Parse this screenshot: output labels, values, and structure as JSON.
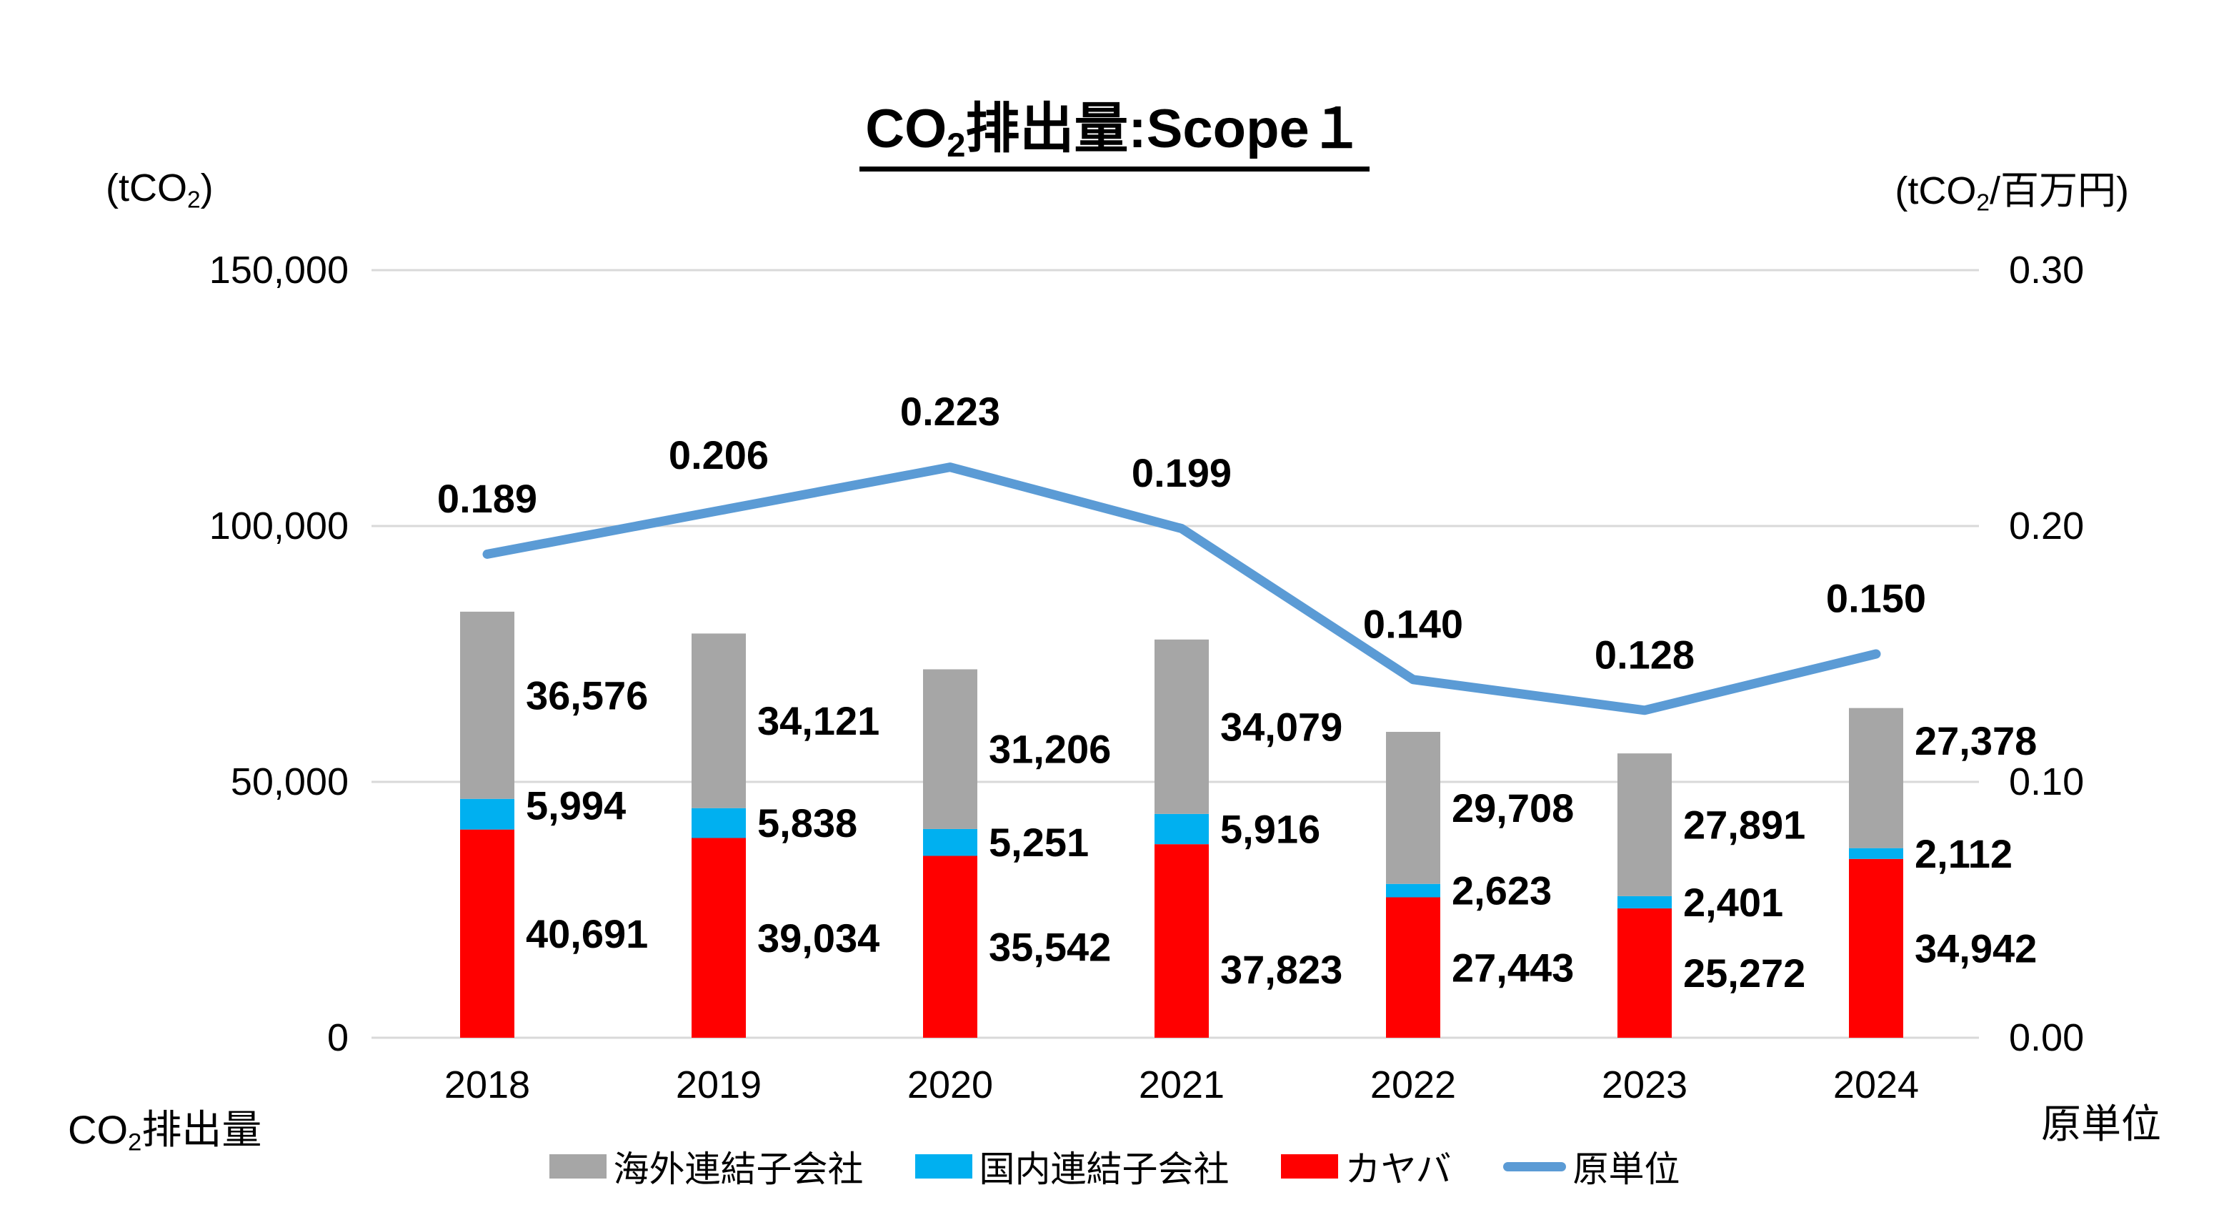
{
  "title": {
    "prefix": "CO",
    "subscript": "2",
    "suffix": "排出量:Scope１"
  },
  "left_axis_unit": {
    "prefix": "(tCO",
    "subscript": "2",
    "suffix": ")"
  },
  "right_axis_unit": {
    "prefix": "(tCO",
    "subscript": "2",
    "suffix": "/百万円)"
  },
  "bottom_left_label": {
    "prefix": "CO",
    "subscript": "2",
    "suffix": "排出量"
  },
  "bottom_right_label": "原単位",
  "colors": {
    "overseas": "#A6A6A6",
    "domestic": "#00B0F0",
    "kyb": "#FF0000",
    "line": "#5B9BD5",
    "grid": "#D9D9D9"
  },
  "chart_data": {
    "type": "bar+line",
    "bar_mode": "stacked",
    "title": "CO2排出量:Scope１",
    "categories": [
      "2018",
      "2019",
      "2020",
      "2021",
      "2022",
      "2023",
      "2024"
    ],
    "series": [
      {
        "name": "海外連結子会社",
        "role": "overseas",
        "stack_index": 2,
        "values": [
          36576,
          34121,
          31206,
          34079,
          29708,
          27891,
          27378
        ]
      },
      {
        "name": "国内連結子会社",
        "role": "domestic",
        "stack_index": 1,
        "values": [
          5994,
          5838,
          5251,
          5916,
          2623,
          2401,
          2112
        ]
      },
      {
        "name": "カヤバ",
        "role": "kyb",
        "stack_index": 0,
        "values": [
          40691,
          39034,
          35542,
          37823,
          27443,
          25272,
          34942
        ]
      }
    ],
    "line_series": {
      "name": "原単位",
      "role": "line",
      "values": [
        0.189,
        0.206,
        0.223,
        0.199,
        0.14,
        0.128,
        0.15
      ]
    },
    "left_axis": {
      "unit": "tCO2",
      "min": 0,
      "max": 150000,
      "ticks": [
        {
          "value": 150000,
          "label": "150,000"
        },
        {
          "value": 100000,
          "label": "100,000"
        },
        {
          "value": 50000,
          "label": "50,000"
        },
        {
          "value": 0,
          "label": "0"
        }
      ]
    },
    "right_axis": {
      "unit": "tCO2/百万円",
      "min": 0,
      "max": 0.3,
      "ticks": [
        {
          "value": 0.3,
          "label": "0.30"
        },
        {
          "value": 0.2,
          "label": "0.20"
        },
        {
          "value": 0.1,
          "label": "0.10"
        },
        {
          "value": 0.0,
          "label": "0.00"
        }
      ]
    },
    "grid": true,
    "legend_position": "bottom",
    "legend": [
      {
        "label": "海外連結子会社",
        "swatch": "square",
        "color_key": "overseas"
      },
      {
        "label": "国内連結子会社",
        "swatch": "square",
        "color_key": "domestic"
      },
      {
        "label": "カヤバ",
        "swatch": "square",
        "color_key": "kyb"
      },
      {
        "label": "原単位",
        "swatch": "line",
        "color_key": "line"
      }
    ]
  }
}
